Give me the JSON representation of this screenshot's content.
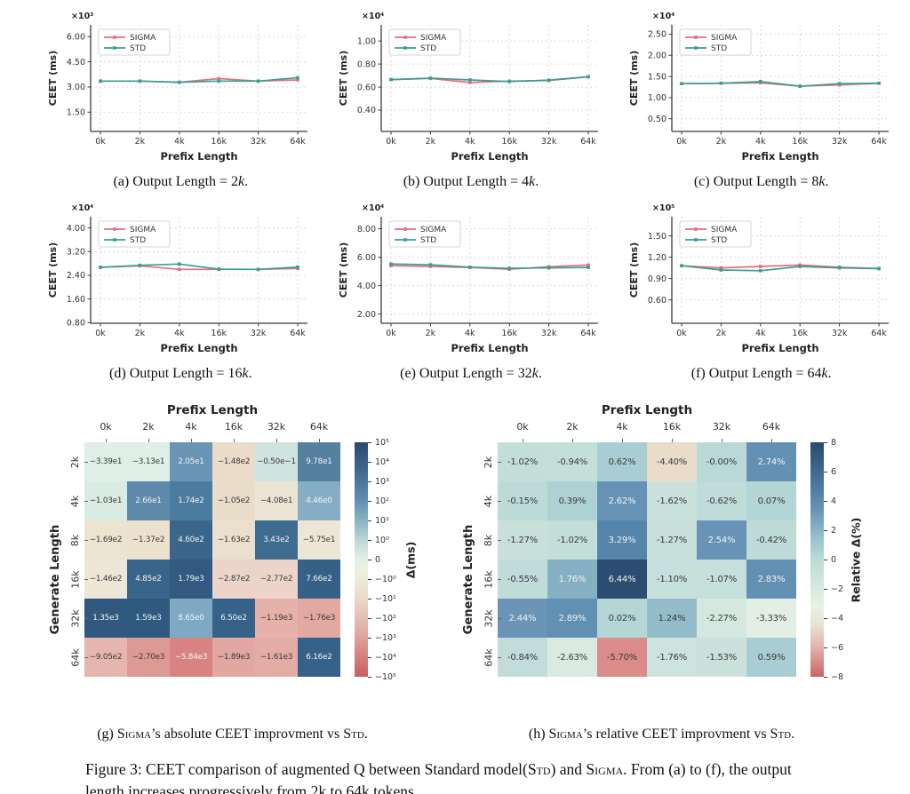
{
  "figure": {
    "colors": {
      "sigma": "#e46e7d",
      "std": "#38a093",
      "axis": "#3b3b3b",
      "grid": "#cccccc"
    },
    "captions": {
      "a": [
        {
          "t": "(a) Output Length = 2"
        },
        {
          "t": "k",
          "i": true
        },
        {
          "t": "."
        }
      ],
      "b": [
        {
          "t": "(b) Output Length = 4"
        },
        {
          "t": "k",
          "i": true
        },
        {
          "t": "."
        }
      ],
      "c": [
        {
          "t": "(c) Output Length = 8"
        },
        {
          "t": "k",
          "i": true
        },
        {
          "t": "."
        }
      ],
      "d": [
        {
          "t": "(d) Output Length = 16"
        },
        {
          "t": "k",
          "i": true
        },
        {
          "t": "."
        }
      ],
      "e": [
        {
          "t": "(e) Output Length = 32"
        },
        {
          "t": "k",
          "i": true
        },
        {
          "t": "."
        }
      ],
      "f": [
        {
          "t": "(f) Output Length = 64"
        },
        {
          "t": "k",
          "i": true
        },
        {
          "t": "."
        }
      ],
      "g": [
        {
          "t": "(g) "
        },
        {
          "t": "Sigma",
          "sc": true
        },
        {
          "t": "’s absolute CEET improvment vs "
        },
        {
          "t": "Std",
          "sc": true
        },
        {
          "t": "."
        }
      ],
      "h": [
        {
          "t": "(h) "
        },
        {
          "t": "Sigma",
          "sc": true
        },
        {
          "t": "’s relative CEET improvment vs "
        },
        {
          "t": "Std",
          "sc": true
        },
        {
          "t": "."
        }
      ],
      "main": [
        {
          "t": "Figure 3: CEET comparison of augmented Q between Standard model("
        },
        {
          "t": "Std",
          "sc": true
        },
        {
          "t": ") and "
        },
        {
          "t": "Sigma",
          "sc": true
        },
        {
          "t": ". From (a) to (f), the output length increases progressively from 2k to 64k tokens."
        }
      ]
    }
  },
  "chart_data": [
    {
      "type": "line",
      "id": "a",
      "offset": "×10³",
      "xlabel": "Prefix Length",
      "ylabel": "CEET (ms)",
      "x": [
        "0k",
        "2k",
        "4k",
        "16k",
        "32k",
        "64k"
      ],
      "ylim": [
        0.35,
        6.7
      ],
      "yticks": [
        1.5,
        3.0,
        4.5,
        6.0
      ],
      "ytick_labels": [
        "1.50",
        "3.00",
        "4.50",
        "6.00"
      ],
      "series": [
        {
          "name": "SIGMA",
          "color": "#e46e7d",
          "values": [
            3.35,
            3.35,
            3.28,
            3.5,
            3.35,
            3.42
          ]
        },
        {
          "name": "STD",
          "color": "#38a093",
          "values": [
            3.35,
            3.35,
            3.28,
            3.35,
            3.35,
            3.55
          ]
        }
      ]
    },
    {
      "type": "line",
      "id": "b",
      "offset": "×10⁴",
      "xlabel": "Prefix Length",
      "ylabel": "CEET (ms)",
      "x": [
        "0k",
        "2k",
        "4k",
        "16k",
        "32k",
        "64k"
      ],
      "ylim": [
        0.215,
        1.14
      ],
      "yticks": [
        0.4,
        0.6,
        0.8,
        1.0
      ],
      "ytick_labels": [
        "0.40",
        "0.60",
        "0.80",
        "1.00"
      ],
      "series": [
        {
          "name": "SIGMA",
          "color": "#e46e7d",
          "values": [
            0.665,
            0.675,
            0.64,
            0.652,
            0.657,
            0.69
          ]
        },
        {
          "name": "STD",
          "color": "#38a093",
          "values": [
            0.665,
            0.678,
            0.662,
            0.648,
            0.66,
            0.69
          ]
        }
      ]
    },
    {
      "type": "line",
      "id": "c",
      "offset": "×10⁴",
      "xlabel": "Prefix Length",
      "ylabel": "CEET (ms)",
      "x": [
        "0k",
        "2k",
        "4k",
        "16k",
        "32k",
        "64k"
      ],
      "ylim": [
        0.2,
        2.72
      ],
      "yticks": [
        0.5,
        1.0,
        1.5,
        2.0,
        2.5
      ],
      "ytick_labels": [
        "0.50",
        "1.00",
        "1.50",
        "2.00",
        "2.50"
      ],
      "series": [
        {
          "name": "SIGMA",
          "color": "#e46e7d",
          "values": [
            1.33,
            1.34,
            1.35,
            1.27,
            1.3,
            1.34
          ]
        },
        {
          "name": "STD",
          "color": "#38a093",
          "values": [
            1.33,
            1.34,
            1.38,
            1.27,
            1.33,
            1.34
          ]
        }
      ]
    },
    {
      "type": "line",
      "id": "d",
      "offset": "×10⁴",
      "xlabel": "Prefix Length",
      "ylabel": "CEET (ms)",
      "x": [
        "0k",
        "2k",
        "4k",
        "16k",
        "32k",
        "64k"
      ],
      "ylim": [
        0.78,
        4.38
      ],
      "yticks": [
        0.8,
        1.6,
        2.4,
        3.2,
        4.0
      ],
      "ytick_labels": [
        "0.80",
        "1.60",
        "2.40",
        "3.20",
        "4.00"
      ],
      "series": [
        {
          "name": "SIGMA",
          "color": "#e46e7d",
          "values": [
            2.67,
            2.72,
            2.6,
            2.6,
            2.6,
            2.63
          ]
        },
        {
          "name": "STD",
          "color": "#38a093",
          "values": [
            2.67,
            2.74,
            2.78,
            2.61,
            2.6,
            2.68
          ]
        }
      ]
    },
    {
      "type": "line",
      "id": "e",
      "offset": "×10⁴",
      "xlabel": "Prefix Length",
      "ylabel": "CEET (ms)",
      "x": [
        "0k",
        "2k",
        "4k",
        "16k",
        "32k",
        "64k"
      ],
      "ylim": [
        1.35,
        8.85
      ],
      "yticks": [
        2.0,
        4.0,
        6.0,
        8.0
      ],
      "ytick_labels": [
        "2.00",
        "4.00",
        "6.00",
        "8.00"
      ],
      "series": [
        {
          "name": "SIGMA",
          "color": "#e46e7d",
          "values": [
            5.4,
            5.35,
            5.28,
            5.15,
            5.33,
            5.45
          ]
        },
        {
          "name": "STD",
          "color": "#38a093",
          "values": [
            5.52,
            5.47,
            5.3,
            5.22,
            5.25,
            5.28
          ]
        }
      ]
    },
    {
      "type": "line",
      "id": "f",
      "offset": "×10⁵",
      "xlabel": "Prefix Length",
      "ylabel": "CEET (ms)",
      "x": [
        "0k",
        "2k",
        "4k",
        "16k",
        "32k",
        "64k"
      ],
      "ylim": [
        0.27,
        1.77
      ],
      "yticks": [
        0.6,
        0.9,
        1.2,
        1.5
      ],
      "ytick_labels": [
        "0.60",
        "0.90",
        "1.20",
        "1.50"
      ],
      "series": [
        {
          "name": "SIGMA",
          "color": "#e46e7d",
          "values": [
            1.08,
            1.05,
            1.07,
            1.09,
            1.06,
            1.04
          ]
        },
        {
          "name": "STD",
          "color": "#38a093",
          "values": [
            1.08,
            1.02,
            1.01,
            1.07,
            1.05,
            1.04
          ]
        }
      ]
    },
    {
      "type": "heatmap",
      "id": "g",
      "title": "Prefix Length",
      "ylabel": "Generate Length",
      "cols": [
        "0k",
        "2k",
        "4k",
        "16k",
        "32k",
        "64k"
      ],
      "rows": [
        "2k",
        "4k",
        "8k",
        "16k",
        "32k",
        "64k"
      ],
      "labels": [
        [
          "−3.39e1",
          "−3.13e1",
          "2.05e1",
          "−1.48e2",
          "−0.50e−1",
          "9.78e1"
        ],
        [
          "−1.03e1",
          "2.66e1",
          "1.74e2",
          "−1.05e2",
          "−4.08e1",
          "4.46e0"
        ],
        [
          "−1.69e2",
          "−1.37e2",
          "4.60e2",
          "−1.63e2",
          "3.43e2",
          "−5.75e1"
        ],
        [
          "−1.46e2",
          "4.85e2",
          "1.79e3",
          "−2.87e2",
          "−2.77e2",
          "7.66e2"
        ],
        [
          "1.35e3",
          "1.59e3",
          "8.65e0",
          "6.50e2",
          "−1.19e3",
          "−1.76e3"
        ],
        [
          "−9.05e2",
          "−2.70e3",
          "−5.84e3",
          "−1.89e3",
          "−1.61e3",
          "6.16e2"
        ]
      ],
      "values": [
        [
          -33.9,
          -31.3,
          20.5,
          -148,
          -0.05,
          97.8
        ],
        [
          -10.3,
          26.6,
          174,
          -105,
          -40.8,
          4.46
        ],
        [
          -169,
          -137,
          460,
          -163,
          343,
          -57.5
        ],
        [
          -146,
          485,
          1790,
          -287,
          -277,
          766
        ],
        [
          1350,
          1590,
          8.65,
          650,
          -1190,
          -1760
        ],
        [
          -905,
          -2700,
          -5840,
          -1890,
          -1610,
          616
        ]
      ],
      "cell_colors": [
        [
          "#dfeee6",
          "#dfeee6",
          "#6a94b4",
          "#e9dcc8",
          "#cfe4df",
          "#55809f"
        ],
        [
          "#d9ebe3",
          "#5d89ab",
          "#4c7ba0",
          "#e9dcc8",
          "#ece4d3",
          "#85aec6"
        ],
        [
          "#ece3d1",
          "#ece1ce",
          "#3a668c",
          "#eae0cd",
          "#3e6b90",
          "#ede6d6"
        ],
        [
          "#ede7d8",
          "#39658b",
          "#32597f",
          "#ecd4cb",
          "#ecd4cb",
          "#356188"
        ],
        [
          "#315980",
          "#315980",
          "#7ea9c4",
          "#36628a",
          "#e5b1a9",
          "#e2a8a2"
        ],
        [
          "#e6b5ad",
          "#dd9a94",
          "#d88382",
          "#e1a7a0",
          "#e3aca4",
          "#36628a"
        ]
      ],
      "cell_text": [
        [
          "d",
          "d",
          "w",
          "d",
          "d",
          "w"
        ],
        [
          "d",
          "w",
          "w",
          "d",
          "d",
          "w"
        ],
        [
          "d",
          "d",
          "w",
          "d",
          "w",
          "d"
        ],
        [
          "d",
          "w",
          "w",
          "d",
          "d",
          "w"
        ],
        [
          "w",
          "w",
          "w",
          "w",
          "d",
          "d"
        ],
        [
          "d",
          "d",
          "w",
          "d",
          "d",
          "w"
        ]
      ],
      "colorbar": {
        "label": "Δ(ms)",
        "ticks": [
          "10⁵",
          "10⁴",
          "10³",
          "10²",
          "10¹",
          "10⁰",
          "0",
          "−10⁰",
          "−10¹",
          "−10²",
          "−10³",
          "−10⁴",
          "−10⁵"
        ],
        "gradient": [
          {
            "c": "#2a4a6c",
            "p": 0
          },
          {
            "c": "#3f688f",
            "p": 12
          },
          {
            "c": "#5e8bad",
            "p": 24
          },
          {
            "c": "#8fb5c6",
            "p": 34
          },
          {
            "c": "#c2dcd9",
            "p": 43
          },
          {
            "c": "#e3efe7",
            "p": 50
          },
          {
            "c": "#edf0e0",
            "p": 55
          },
          {
            "c": "#e9dcc8",
            "p": 66
          },
          {
            "c": "#e2aea7",
            "p": 80
          },
          {
            "c": "#d68781",
            "p": 90
          },
          {
            "c": "#c75f5f",
            "p": 100
          }
        ]
      }
    },
    {
      "type": "heatmap",
      "id": "h",
      "title": "Prefix Length",
      "ylabel": "Generate Length",
      "cols": [
        "0k",
        "2k",
        "4k",
        "16k",
        "32k",
        "64k"
      ],
      "rows": [
        "2k",
        "4k",
        "8k",
        "16k",
        "32k",
        "64k"
      ],
      "labels": [
        [
          "-1.02%",
          "-0.94%",
          "0.62%",
          "-4.40%",
          "-0.00%",
          "2.74%"
        ],
        [
          "-0.15%",
          "0.39%",
          "2.62%",
          "-1.62%",
          "-0.62%",
          "0.07%"
        ],
        [
          "-1.27%",
          "-1.02%",
          "3.29%",
          "-1.27%",
          "2.54%",
          "-0.42%"
        ],
        [
          "-0.55%",
          "1.76%",
          "6.44%",
          "-1.10%",
          "-1.07%",
          "2.83%"
        ],
        [
          "2.44%",
          "2.89%",
          "0.02%",
          "1.24%",
          "-2.27%",
          "-3.33%"
        ],
        [
          "-0.84%",
          "-2.63%",
          "-5.70%",
          "-1.76%",
          "-1.53%",
          "0.59%"
        ]
      ],
      "values": [
        [
          -1.02,
          -0.94,
          0.62,
          -4.4,
          -0.0,
          2.74
        ],
        [
          -0.15,
          0.39,
          2.62,
          -1.62,
          -0.62,
          0.07
        ],
        [
          -1.27,
          -1.02,
          3.29,
          -1.27,
          2.54,
          -0.42
        ],
        [
          -0.55,
          1.76,
          6.44,
          -1.1,
          -1.07,
          2.83
        ],
        [
          2.44,
          2.89,
          0.02,
          1.24,
          -2.27,
          -3.33
        ],
        [
          -0.84,
          -2.63,
          -5.7,
          -1.76,
          -1.53,
          0.59
        ]
      ],
      "cell_colors": [
        [
          "#c3ded9",
          "#c4dfda",
          "#a8ced3",
          "#e9dcc8",
          "#b9d9d8",
          "#6391b4"
        ],
        [
          "#bcdad6",
          "#aed2d3",
          "#6693b5",
          "#cbe2dc",
          "#c0dcd8",
          "#b3d5d5"
        ],
        [
          "#c7e0da",
          "#c3ded9",
          "#5585ab",
          "#c7e0da",
          "#6893b6",
          "#bfdbd7"
        ],
        [
          "#c0dcd8",
          "#85b0c4",
          "#2c4d71",
          "#c5dfda",
          "#c5dfda",
          "#6290b3"
        ],
        [
          "#6a95b7",
          "#6190b3",
          "#b4d6d5",
          "#93bcca",
          "#d5e8e0",
          "#e3efe5"
        ],
        [
          "#c2ddd9",
          "#d9eae1",
          "#db8b88",
          "#cde3dd",
          "#cae2db",
          "#a8ced3"
        ]
      ],
      "cell_text": [
        [
          "d",
          "d",
          "d",
          "d",
          "d",
          "w"
        ],
        [
          "d",
          "d",
          "w",
          "d",
          "d",
          "d"
        ],
        [
          "d",
          "d",
          "w",
          "d",
          "w",
          "d"
        ],
        [
          "d",
          "w",
          "w",
          "d",
          "d",
          "w"
        ],
        [
          "w",
          "w",
          "d",
          "d",
          "d",
          "d"
        ],
        [
          "d",
          "d",
          "d",
          "d",
          "d",
          "d"
        ]
      ],
      "colorbar": {
        "label": "Relative Δ(%)",
        "ticks": [
          "8",
          "6",
          "4",
          "2",
          "0",
          "−2",
          "−4",
          "−6",
          "−8"
        ],
        "gradient": [
          {
            "c": "#2a4a6c",
            "p": 0
          },
          {
            "c": "#4c77a0",
            "p": 18
          },
          {
            "c": "#6d98b8",
            "p": 30
          },
          {
            "c": "#9cc5cd",
            "p": 42
          },
          {
            "c": "#bcdad6",
            "p": 50
          },
          {
            "c": "#d3e7de",
            "p": 60
          },
          {
            "c": "#e7f1e7",
            "p": 70
          },
          {
            "c": "#eae2d0",
            "p": 78
          },
          {
            "c": "#e2aea7",
            "p": 88
          },
          {
            "c": "#cb6261",
            "p": 100
          }
        ]
      }
    }
  ]
}
